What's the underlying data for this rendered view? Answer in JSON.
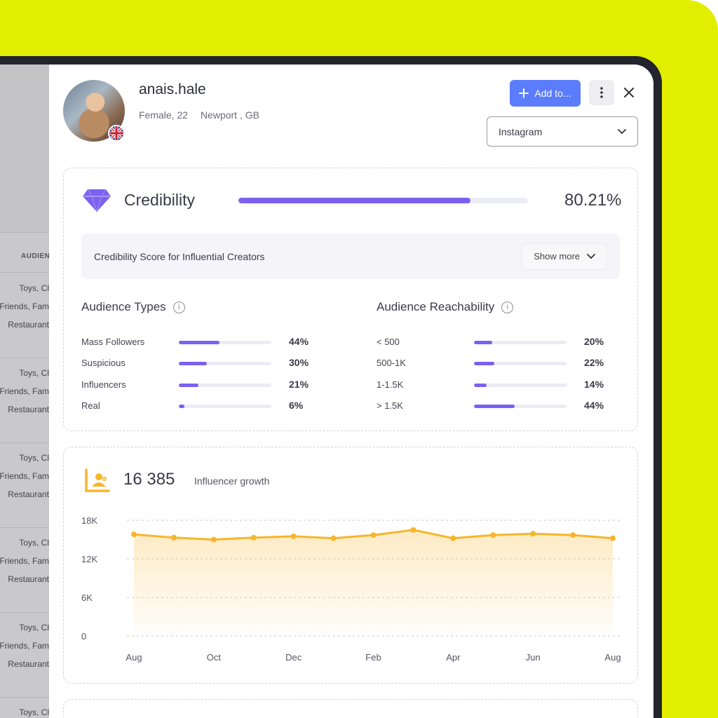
{
  "background_table": {
    "column_header": "AUDIENCE",
    "rows": [
      [
        "Toys, Cl",
        "Friends, Fam",
        "Restaurant"
      ],
      [
        "Toys, Cl",
        "Friends, Fam",
        "Restaurant"
      ],
      [
        "Toys, Cl",
        "Friends, Fam",
        "Restaurant"
      ],
      [
        "Toys, Cl",
        "Friends, Fam",
        "Restaurant"
      ],
      [
        "Toys, Cl",
        "Friends, Fam",
        "Restaurant"
      ],
      [
        "Toys, Cl"
      ]
    ]
  },
  "profile": {
    "username": "anais.hale",
    "gender_age": "Female, 22",
    "location": "Newport , GB",
    "flag_icon": "uk-flag-icon",
    "avatar_icon": "profile-photo"
  },
  "header": {
    "add_button_label": "Add to...",
    "add_icon": "plus-icon",
    "more_icon": "vertical-dots-icon",
    "close_icon": "close-icon",
    "platform_select": "Instagram"
  },
  "credibility": {
    "title": "Credibility",
    "score_text": "80.21%",
    "score_fraction": 0.8021,
    "icon": "diamond-icon",
    "note": "Credibility Score for Influential Creators",
    "show_more_label": "Show more",
    "accent_color": "#7b61f0"
  },
  "audience_types": {
    "title": "Audience Types",
    "rows": [
      {
        "label": "Mass Followers",
        "value": "44%",
        "fraction": 0.44
      },
      {
        "label": "Suspicious",
        "value": "30%",
        "fraction": 0.3
      },
      {
        "label": "Influencers",
        "value": "21%",
        "fraction": 0.21
      },
      {
        "label": "Real",
        "value": "6%",
        "fraction": 0.06
      }
    ]
  },
  "audience_reachability": {
    "title": "Audience Reachability",
    "rows": [
      {
        "label": "< 500",
        "value": "20%",
        "fraction": 0.2
      },
      {
        "label": "500-1K",
        "value": "22%",
        "fraction": 0.22
      },
      {
        "label": "1-1.5K",
        "value": "14%",
        "fraction": 0.14
      },
      {
        "label": "> 1.5K",
        "value": "44%",
        "fraction": 0.44
      }
    ]
  },
  "growth": {
    "followers": "16 385",
    "label": "Influencer growth",
    "icon": "followers-chart-icon",
    "accent_color": "#f6b62b"
  },
  "chart_data": {
    "type": "area",
    "title": "",
    "xlabel": "",
    "ylabel": "",
    "x_tick_labels": [
      "Aug",
      "Oct",
      "Dec",
      "Feb",
      "Apr",
      "Jun",
      "Aug"
    ],
    "y_tick_labels": [
      "18K",
      "12K",
      "6K",
      "0"
    ],
    "ylim": [
      0,
      18000
    ],
    "grid": true,
    "series": [
      {
        "values": [
          15800,
          15300,
          15000,
          15300,
          15500,
          15200,
          15700,
          16500,
          15200,
          15700,
          15900,
          15700,
          15200
        ]
      }
    ]
  }
}
